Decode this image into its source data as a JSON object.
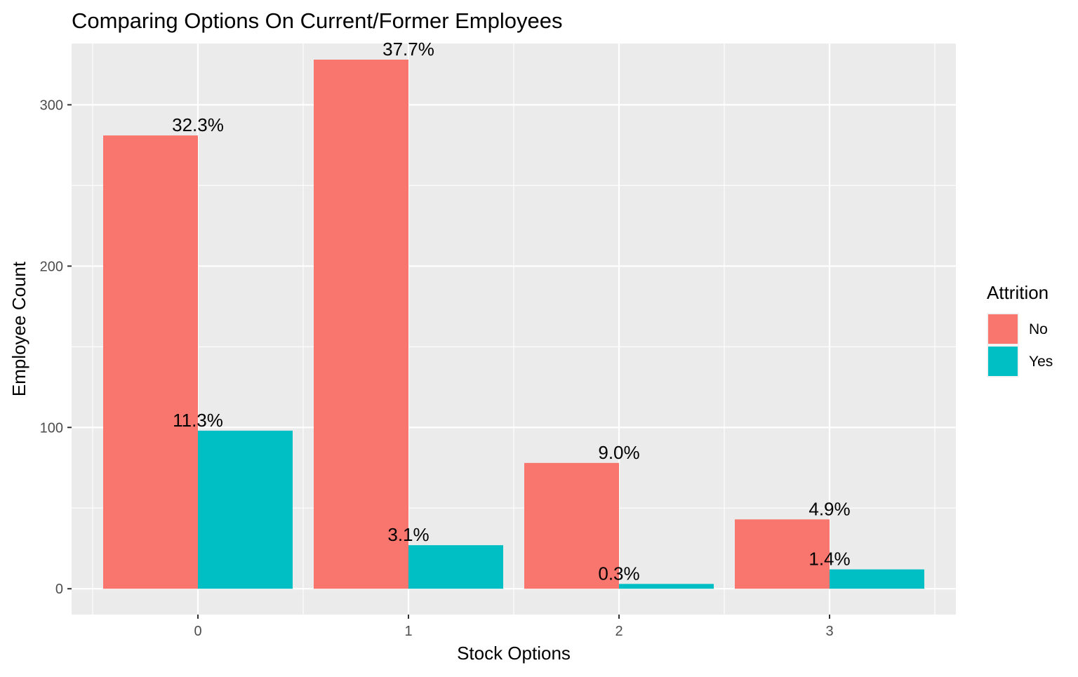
{
  "chart_data": {
    "type": "bar",
    "title": "Comparing Options On Current/Former Employees",
    "xlabel": "Stock Options",
    "ylabel": "Employee Count",
    "categories": [
      "0",
      "1",
      "2",
      "3"
    ],
    "ylim": [
      -16,
      338
    ],
    "y_ticks": [
      0,
      100,
      200,
      300
    ],
    "y_tick_labels": [
      "0",
      "100",
      "200",
      "300"
    ],
    "grid": true,
    "legend": {
      "title": "Attrition",
      "position": "right"
    },
    "series": [
      {
        "name": "No",
        "color": "#F8766D",
        "values": [
          281,
          328,
          78,
          43
        ],
        "labels": [
          "32.3%",
          "37.7%",
          "9.0%",
          "4.9%"
        ]
      },
      {
        "name": "Yes",
        "color": "#00BFC4",
        "values": [
          98,
          27,
          3,
          12
        ],
        "labels": [
          "11.3%",
          "3.1%",
          "0.3%",
          "1.4%"
        ]
      }
    ]
  }
}
